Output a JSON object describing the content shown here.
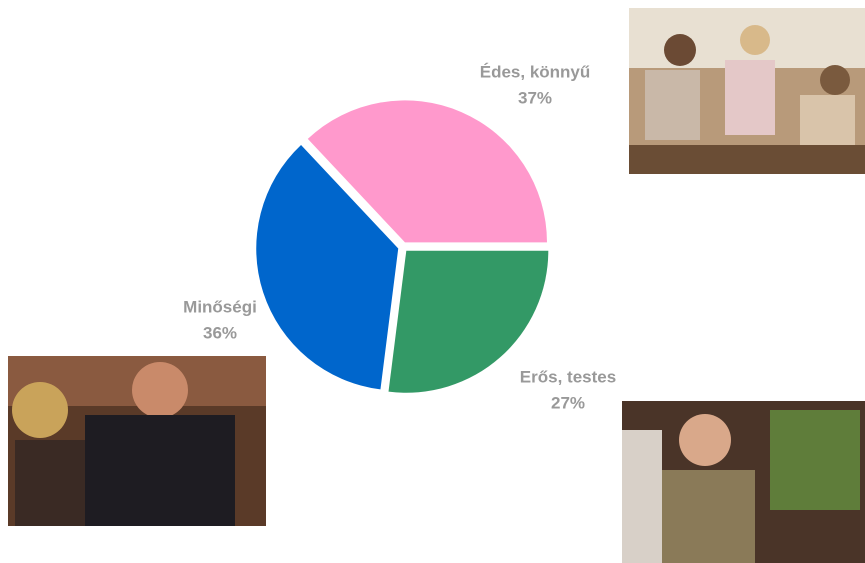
{
  "chart_data": {
    "type": "pie",
    "categories": [
      "Erős, testes",
      "Minőségi",
      "Édes, könnyű"
    ],
    "values": [
      27,
      36,
      37
    ],
    "value_labels": [
      "27%",
      "36%",
      "37%"
    ],
    "colors": [
      "#339966",
      "#0066cc",
      "#ff99cc"
    ]
  }
}
